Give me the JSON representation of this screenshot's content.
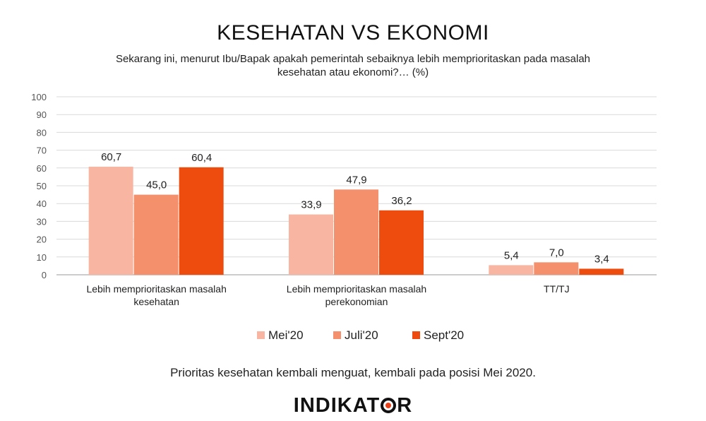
{
  "title": "KESEHATAN VS EKONOMI",
  "subtitle": "Sekarang ini, menurut Ibu/Bapak apakah pemerintah sebaiknya lebih memprioritaskan pada masalah kesehatan atau ekonomi?… (%)",
  "footnote": "Prioritas kesehatan kembali menguat, kembali pada posisi Mei 2020.",
  "logo": {
    "text_before": "INDIKAT",
    "text_after": "R"
  },
  "chart_data": {
    "type": "bar",
    "categories": [
      [
        "Lebih memprioritaskan masalah",
        "kesehatan"
      ],
      [
        "Lebih memprioritaskan masalah",
        "perekonomian"
      ],
      [
        "TT/TJ"
      ]
    ],
    "series": [
      {
        "name": "Mei'20",
        "color": "#f7b5a2",
        "values": [
          60.7,
          33.9,
          5.4
        ],
        "labels": [
          "60,7",
          "33,9",
          "5,4"
        ]
      },
      {
        "name": "Juli'20",
        "color": "#f4906c",
        "values": [
          45.0,
          47.9,
          7.0
        ],
        "labels": [
          "45,0",
          "47,9",
          "7,0"
        ]
      },
      {
        "name": "Sept'20",
        "color": "#ee4c0f",
        "values": [
          60.4,
          36.2,
          3.4
        ],
        "labels": [
          "60,4",
          "36,2",
          "3,4"
        ]
      }
    ],
    "ylim": [
      0,
      100
    ],
    "yticks": [
      0,
      10,
      20,
      30,
      40,
      50,
      60,
      70,
      80,
      90,
      100
    ],
    "grid": true,
    "legend_position": "bottom"
  }
}
